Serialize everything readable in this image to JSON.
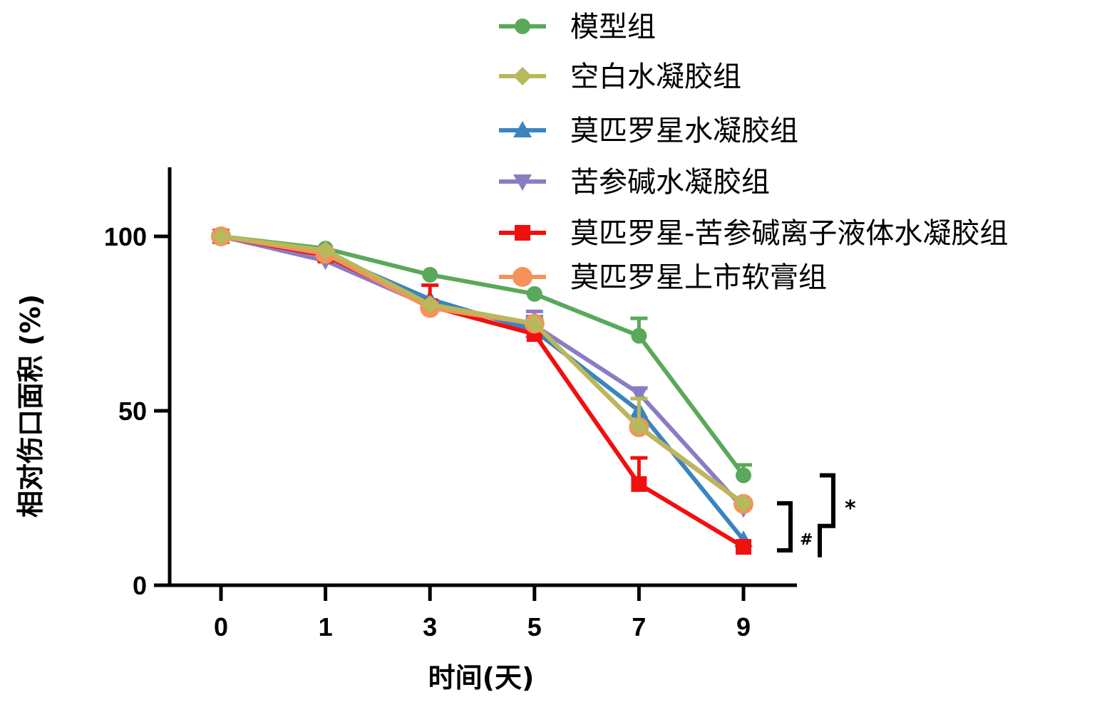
{
  "chart_data": {
    "type": "line",
    "title": "",
    "xlabel": "时间(天)",
    "ylabel": "相对伤口面积 (%)",
    "categories": [
      "0",
      "1",
      "3",
      "5",
      "7",
      "9"
    ],
    "ylim": [
      0,
      120
    ],
    "yticks": [
      0,
      50,
      100
    ],
    "grid": false,
    "legend_position": "top-right",
    "series": [
      {
        "name": "模型组",
        "color": "#5aa85a",
        "marker": "circle",
        "values": [
          100,
          96.5,
          89,
          83.5,
          71.5,
          31.5
        ],
        "sd": [
          0,
          0,
          0,
          0,
          5,
          3
        ]
      },
      {
        "name": "空白水凝胶组",
        "color": "#b8b85c",
        "marker": "diamond",
        "values": [
          100,
          96,
          80.5,
          75,
          45.5,
          23.5
        ],
        "sd": [
          0,
          0,
          0,
          0,
          8,
          0
        ]
      },
      {
        "name": "莫匹罗星水凝胶组",
        "color": "#3a84c0",
        "marker": "triangle-up",
        "values": [
          100,
          95,
          82,
          73,
          50,
          13
        ],
        "sd": [
          0,
          0,
          0,
          4,
          0,
          0
        ]
      },
      {
        "name": "苦参碱水凝胶组",
        "color": "#8a7cc4",
        "marker": "triangle-down",
        "values": [
          100,
          93,
          80,
          74.5,
          55,
          22
        ],
        "sd": [
          0,
          0,
          0,
          4,
          1.5,
          0
        ]
      },
      {
        "name": "莫匹罗星-苦参碱离子液体水凝胶组",
        "color": "#f01010",
        "marker": "square",
        "values": [
          100,
          94.5,
          80,
          72,
          29,
          11
        ],
        "sd": [
          0,
          0,
          6,
          0,
          7.5,
          0
        ]
      },
      {
        "name": "莫匹罗星上市软膏组",
        "color": "#f5925a",
        "marker": "circle-large",
        "values": [
          100,
          95,
          79.5,
          75,
          45.3,
          23.3
        ],
        "sd": [
          0,
          0,
          0,
          0,
          0,
          0
        ]
      }
    ],
    "annotations": [
      {
        "text": "#",
        "range": [
          10,
          23.5
        ]
      },
      {
        "text": "*",
        "range": [
          8,
          31.5
        ]
      }
    ]
  }
}
